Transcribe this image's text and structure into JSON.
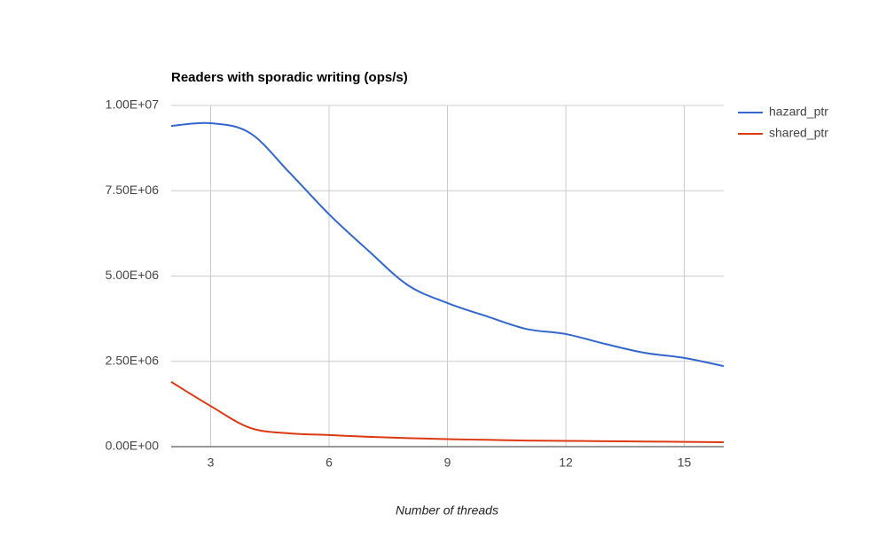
{
  "chart_data": {
    "type": "line",
    "title": "Readers with sporadic writing (ops/s)",
    "x_label": "Number of threads",
    "x": [
      2,
      3,
      4,
      5,
      6,
      7,
      8,
      9,
      10,
      11,
      12,
      13,
      14,
      15,
      16
    ],
    "series": [
      {
        "name": "hazard_ptr",
        "color": "#3366cc",
        "values": [
          9400000,
          9480000,
          9190000,
          8030000,
          6810000,
          5740000,
          4730000,
          4210000,
          3820000,
          3450000,
          3300000,
          3010000,
          2750000,
          2600000,
          2360000
        ]
      },
      {
        "name": "shared_ptr",
        "color": "#dc3912",
        "values": [
          1900000,
          1190000,
          550000,
          390000,
          340000,
          290000,
          250000,
          220000,
          200000,
          180000,
          170000,
          160000,
          150000,
          140000,
          130000
        ]
      }
    ],
    "xlim": [
      2,
      16
    ],
    "xticks": [
      3,
      6,
      9,
      12,
      15
    ],
    "ylim": [
      0,
      10000000
    ],
    "yticks": [
      {
        "value": 0,
        "label": "0.00E+00"
      },
      {
        "value": 2500000,
        "label": "2.50E+06"
      },
      {
        "value": 5000000,
        "label": "5.00E+06"
      },
      {
        "value": 7500000,
        "label": "7.50E+06"
      },
      {
        "value": 10000000,
        "label": "1.00E+07"
      }
    ],
    "grid": true,
    "legend": "right"
  }
}
